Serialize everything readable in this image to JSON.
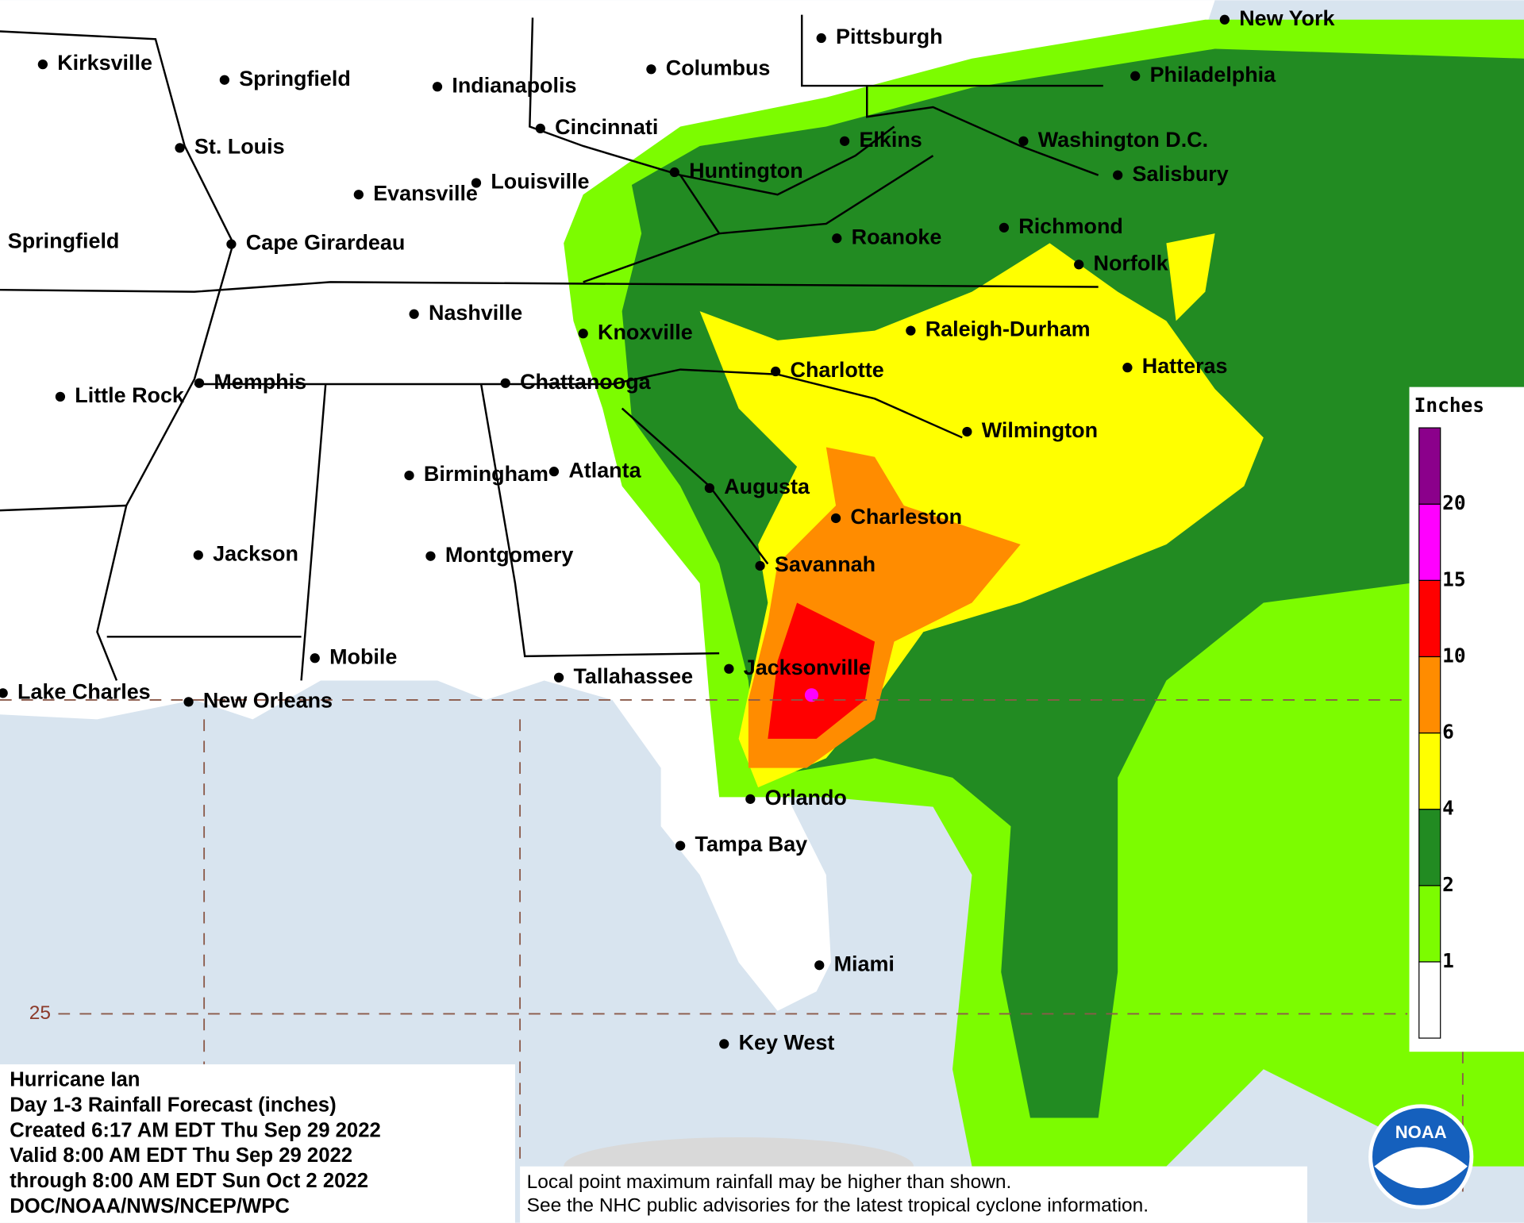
{
  "map": {
    "cities": [
      "Kirksville",
      "Springfield",
      "Indianapolis",
      "Columbus",
      "Pittsburgh",
      "New York",
      "Philadelphia",
      "St. Louis",
      "Cincinnati",
      "Elkins",
      "Washington D.C.",
      "Evansville",
      "Louisville",
      "Huntington",
      "Salisbury",
      "Springfield",
      "Cape Girardeau",
      "Roanoke",
      "Richmond",
      "Norfolk",
      "Nashville",
      "Knoxville",
      "Raleigh-Durham",
      "Hatteras",
      "Memphis",
      "Little Rock",
      "Chattanooga",
      "Charlotte",
      "Wilmington",
      "Birmingham",
      "Atlanta",
      "Augusta",
      "Charleston",
      "Jackson",
      "Montgomery",
      "Savannah",
      "Mobile",
      "Tallahassee",
      "Jacksonville",
      "Lake Charles",
      "New Orleans",
      "Orlando",
      "Tampa Bay",
      "Miami",
      "Key West"
    ],
    "latitude_label": "25"
  },
  "legend": {
    "title": "Inches",
    "ticks": [
      1,
      2,
      4,
      6,
      10,
      15,
      20
    ],
    "colors": [
      "#ffffff",
      "#7cfc00",
      "#228b22",
      "#ffff00",
      "#ff8c00",
      "#ff0000",
      "#ff00ff",
      "#8b008b"
    ]
  },
  "info_box": [
    "Hurricane Ian",
    "Day 1-3 Rainfall Forecast (inches)",
    "Created 6:17 AM EDT Thu Sep 29 2022",
    "Valid 8:00 AM EDT Thu Sep 29 2022",
    "through 8:00 AM EDT Sun Oct 2 2022",
    "DOC/NOAA/NWS/NCEP/WPC"
  ],
  "footnote": [
    "Local point maximum rainfall may be higher than shown.",
    "See the NHC public advisories for the latest tropical cyclone information."
  ],
  "logo": "NOAA"
}
